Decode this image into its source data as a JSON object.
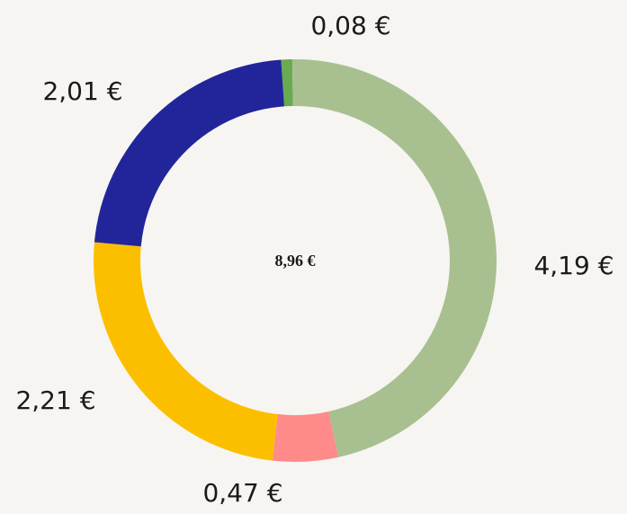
{
  "chart_data": {
    "type": "pie",
    "values": [
      0.08,
      4.19,
      0.47,
      2.21,
      2.01
    ],
    "value_labels": [
      "0,08 €",
      "4,19 €",
      "0,47 €",
      "2,21 €",
      "2,01 €"
    ],
    "colors": [
      "#6aaa50",
      "#a8c090",
      "#ff8a8a",
      "#fbbf00",
      "#22259a"
    ],
    "center_label": "8,96 €"
  }
}
